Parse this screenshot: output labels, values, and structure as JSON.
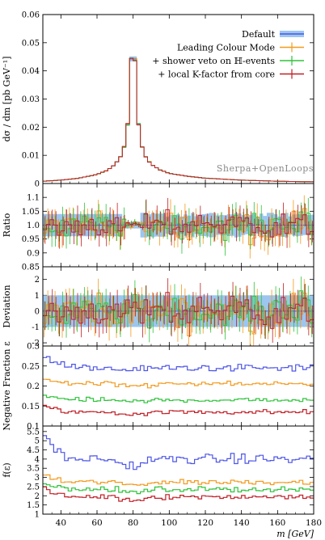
{
  "chart_data": {
    "type": "line",
    "xlabel": "m [GeV]",
    "xlim": [
      30,
      180
    ],
    "x_ticks": [
      "40",
      "60",
      "80",
      "100",
      "120",
      "140",
      "160",
      "180"
    ],
    "generator_label": "Sherpa+OpenLoops",
    "legend_placement": "top-right",
    "series": [
      {
        "name": "Default",
        "color": "#4d55e6",
        "band_color": "#9dc6ee"
      },
      {
        "name": "Leading Colour Mode",
        "color": "#f39a1e"
      },
      {
        "name": "+ shower veto on ℍ-events",
        "color": "#2ec33a"
      },
      {
        "name": "+ local K-factor from core",
        "color": "#c01f26"
      }
    ],
    "panels": [
      {
        "id": "main",
        "ylabel": "dσ / dm [pb GeV⁻¹]",
        "ylim": [
          0,
          0.06
        ],
        "y_ticks": [
          "0",
          "0.01",
          "0.02",
          "0.03",
          "0.04",
          "0.05",
          "0.06"
        ],
        "x": [
          30,
          40,
          50,
          60,
          66,
          70,
          73,
          75,
          77,
          78,
          80,
          82,
          83,
          85,
          87,
          90,
          95,
          100,
          110,
          120,
          140,
          160,
          180
        ],
        "values": [
          0.0008,
          0.0012,
          0.0019,
          0.0032,
          0.0048,
          0.0068,
          0.0095,
          0.013,
          0.021,
          0.034,
          0.0545,
          0.034,
          0.021,
          0.013,
          0.0095,
          0.0068,
          0.0048,
          0.0036,
          0.0026,
          0.0019,
          0.0012,
          0.0008,
          0.0006
        ]
      },
      {
        "id": "ratio",
        "ylabel": "Ratio",
        "ylim": [
          0.85,
          1.15
        ],
        "y_ticks": [
          "0.85",
          "0.9",
          "0.95",
          "1.0",
          "1.05",
          "1.1"
        ]
      },
      {
        "id": "deviation",
        "ylabel": "Deviation",
        "ylim": [
          -2.2,
          2.8
        ],
        "y_ticks": [
          "-2",
          "-1",
          "0",
          "1",
          "2"
        ]
      },
      {
        "id": "negfrac",
        "ylabel": "Negative Fraction ε",
        "ylim": [
          0.1,
          0.3
        ],
        "y_ticks": [
          "0.1",
          "0.15",
          "0.2",
          "0.25",
          "0.3"
        ],
        "levels": [
          0.245,
          0.205,
          0.165,
          0.135
        ]
      },
      {
        "id": "feps",
        "ylabel": "f(ε)",
        "ylim": [
          1,
          5.8
        ],
        "y_ticks": [
          "1",
          "1.5",
          "2",
          "2.5",
          "3",
          "3.5",
          "4",
          "4.5",
          "5",
          "5.5"
        ],
        "levels": [
          4.0,
          2.75,
          2.35,
          1.95
        ]
      }
    ]
  }
}
